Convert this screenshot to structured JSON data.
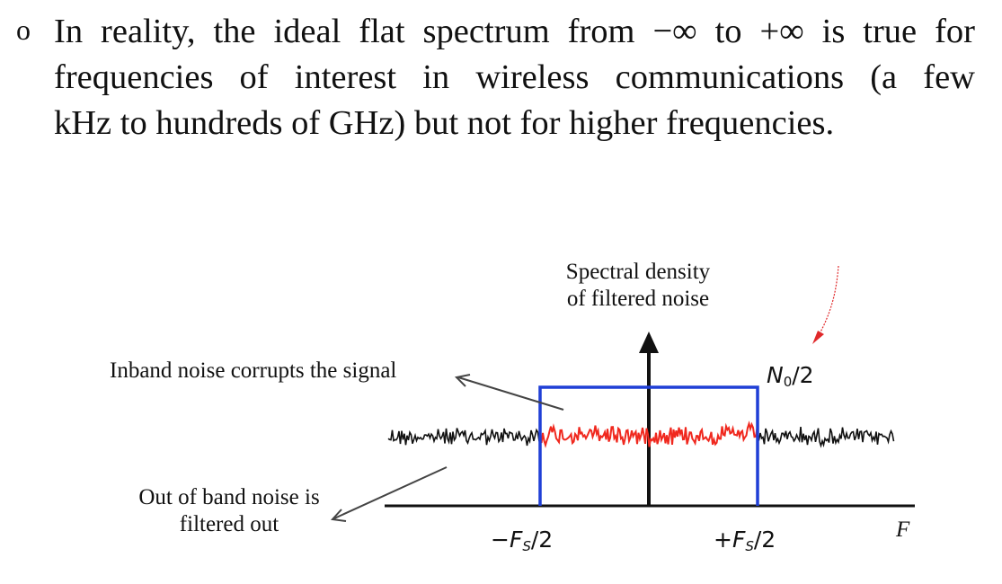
{
  "bullet": {
    "marker": "o",
    "lines": [
      "In reality, the ideal flat spectrum from −∞ to +∞ is true for",
      "frequencies of interest in wireless communications (a few",
      "kHz to hundreds of GHz) but not for higher frequencies."
    ]
  },
  "diagram": {
    "spectral_label_line1": "Spectral density",
    "spectral_label_line2": "of filtered noise",
    "inband_label": "Inband noise corrupts the signal",
    "outband_label_line1": "Out of band noise is",
    "outband_label_line2": "filtered out",
    "level_label_base": "N",
    "level_label_sub": "0",
    "level_label_rest": "/2",
    "neg_fs_sign": "−",
    "pos_fs_sign": "+",
    "fs_symbol": "F",
    "fs_sub": "S",
    "fs_rest": "/2",
    "axis_label": "F",
    "colors": {
      "band": "#1f3fd6",
      "inband_noise": "#f0281e",
      "outband_noise": "#111111",
      "annotation_arrow": "#e0282a"
    }
  }
}
